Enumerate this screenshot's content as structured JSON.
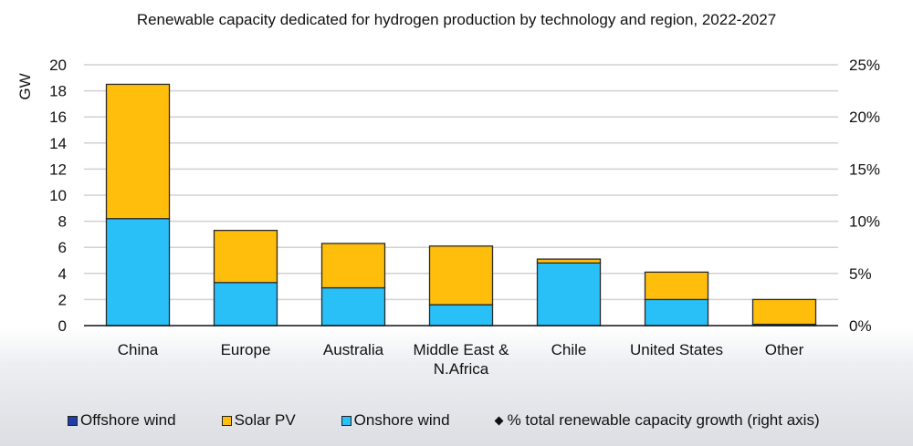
{
  "chart_data": {
    "type": "bar",
    "stacked": true,
    "title": "Renewable capacity dedicated for hydrogen production by technology and region, 2022-2027",
    "ylabel": "GW",
    "ylim": [
      0,
      20
    ],
    "yticks": [
      0,
      2,
      4,
      6,
      8,
      10,
      12,
      14,
      16,
      18,
      20
    ],
    "y2lim": [
      0,
      25
    ],
    "y2ticks": [
      "0%",
      "5%",
      "10%",
      "15%",
      "20%",
      "25%"
    ],
    "grid": true,
    "legend_position": "bottom",
    "categories": [
      "China",
      "Europe",
      "Australia",
      "Middle East & N.Africa",
      "Chile",
      "United States",
      "Other"
    ],
    "series": [
      {
        "name": "Offshore wind",
        "color": "#1f3fa8",
        "values": [
          0,
          0,
          0,
          0,
          0,
          0,
          0
        ]
      },
      {
        "name": "Onshore wind",
        "color": "#29c0f8",
        "values": [
          8.2,
          3.3,
          2.9,
          1.6,
          4.8,
          2.0,
          0.1
        ]
      },
      {
        "name": "Solar PV",
        "color": "#ffbe0b",
        "values": [
          10.3,
          4.0,
          3.4,
          4.5,
          0.3,
          2.1,
          1.9
        ]
      }
    ],
    "legend": [
      "Offshore wind",
      "Solar PV",
      "Onshore wind",
      "% total renewable capacity growth (right axis)"
    ],
    "legend_colors": [
      "#1f3fa8",
      "#ffbe0b",
      "#29c0f8",
      "#111111"
    ]
  }
}
